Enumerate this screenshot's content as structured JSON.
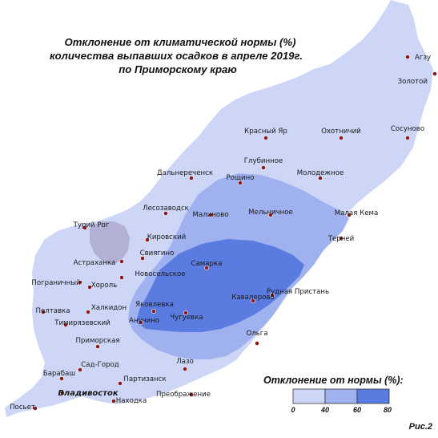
{
  "title": {
    "line1": "Отклонение от климатической нормы (%)",
    "line2": "количества выпавших осадков в апреле 2019г.",
    "line3": "по Приморскому краю"
  },
  "legend": {
    "title": "Отклонение от нормы (%):",
    "ticks": [
      "0",
      "40",
      "60",
      "80"
    ]
  },
  "figure_label": "Рис.2",
  "colors": {
    "land_base": "#cdd6f7",
    "zone_40": "#9fb1ee",
    "zone_60": "#5a7be0",
    "lake": "#b3b0d6",
    "dot": "#8b1a1a"
  },
  "cities": [
    {
      "name": "Агзу"
    },
    {
      "name": "Золотой"
    },
    {
      "name": "Красный Яр"
    },
    {
      "name": "Охотничий"
    },
    {
      "name": "Сосуново"
    },
    {
      "name": "Глубинное"
    },
    {
      "name": "Дальнереченск"
    },
    {
      "name": "Рощино"
    },
    {
      "name": "Молодежное"
    },
    {
      "name": "Лесозаводск"
    },
    {
      "name": "Малиново"
    },
    {
      "name": "Мельничное"
    },
    {
      "name": "Малая Кема"
    },
    {
      "name": "Турий Рог"
    },
    {
      "name": "Кировский"
    },
    {
      "name": "Терней"
    },
    {
      "name": "Свиягино"
    },
    {
      "name": "Астраханка"
    },
    {
      "name": "Новосельское"
    },
    {
      "name": "Самарка"
    },
    {
      "name": "Пограничный"
    },
    {
      "name": "Хороль"
    },
    {
      "name": "Рудная Пристань"
    },
    {
      "name": "Кавалерово"
    },
    {
      "name": "Полтавка"
    },
    {
      "name": "Халкидон"
    },
    {
      "name": "Яковлевка"
    },
    {
      "name": "Тимирязевский"
    },
    {
      "name": "Анучино"
    },
    {
      "name": "Чугуевка"
    },
    {
      "name": "Приморская"
    },
    {
      "name": "Ольга"
    },
    {
      "name": "Лазо"
    },
    {
      "name": "Сад-Город"
    },
    {
      "name": "Барабаш"
    },
    {
      "name": "Партизанск"
    },
    {
      "name": "Владивосток"
    },
    {
      "name": "Преображение"
    },
    {
      "name": "Находка"
    },
    {
      "name": "Посьет"
    }
  ]
}
